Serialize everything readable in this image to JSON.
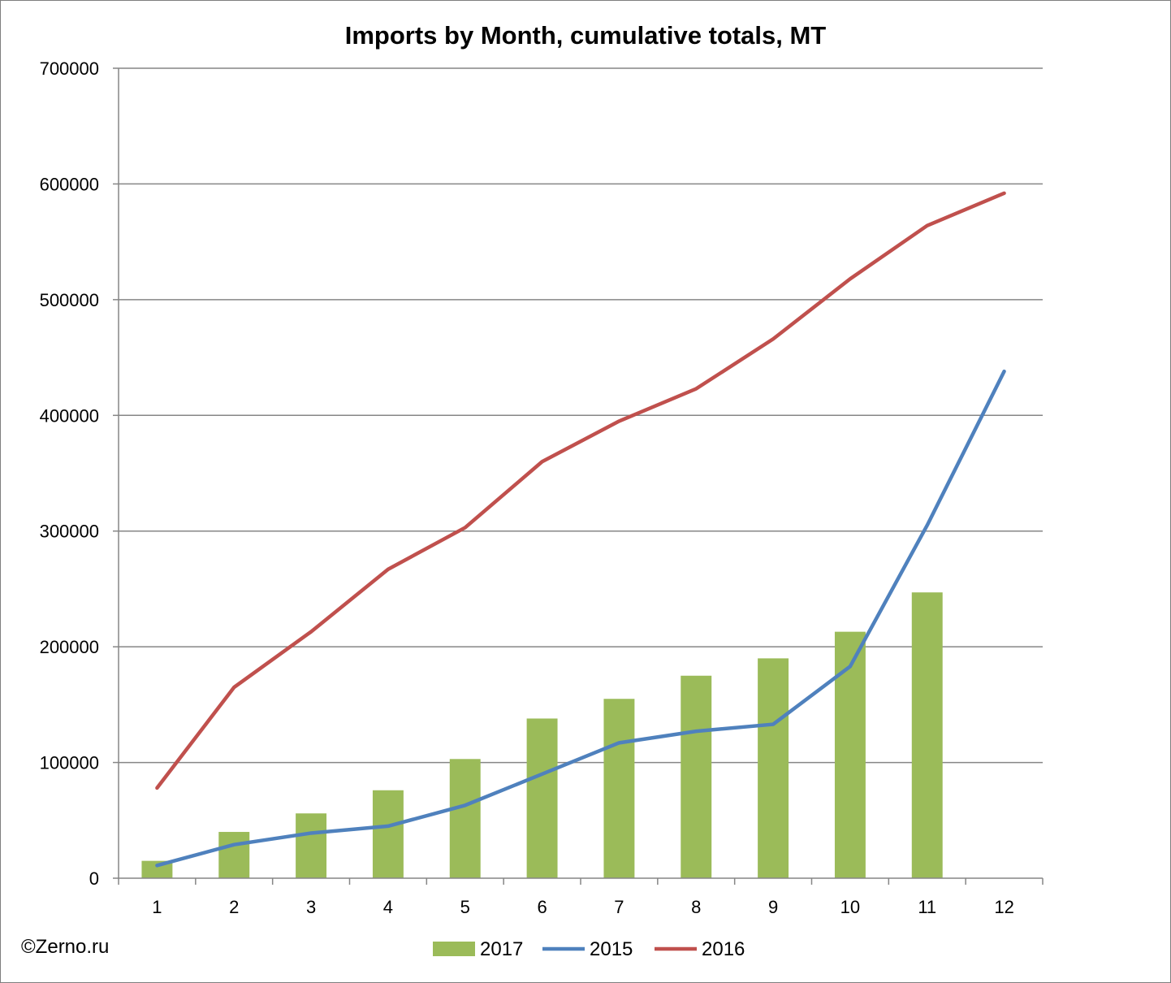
{
  "page": {
    "copyright": "©Zerno.ru"
  },
  "chart_data": {
    "type": "bar+line",
    "title": "Imports by Month, cumulative totals, MT",
    "xlabel": "",
    "ylabel": "",
    "categories": [
      "1",
      "2",
      "3",
      "4",
      "5",
      "6",
      "7",
      "8",
      "9",
      "10",
      "11",
      "12"
    ],
    "ylim": [
      0,
      700000
    ],
    "yticks": [
      0,
      100000,
      200000,
      300000,
      400000,
      500000,
      600000,
      700000
    ],
    "ytick_labels": [
      "0",
      "100000",
      "200000",
      "300000",
      "400000",
      "500000",
      "600000",
      "700000"
    ],
    "grid": true,
    "legend_position": "bottom",
    "series": [
      {
        "name": "2017",
        "type": "bar",
        "color": "#9bbb59",
        "values": [
          15000,
          40000,
          56000,
          76000,
          103000,
          138000,
          155000,
          175000,
          190000,
          213000,
          247000,
          null
        ]
      },
      {
        "name": "2015",
        "type": "line",
        "color": "#4f81bd",
        "values": [
          11000,
          29000,
          39000,
          45000,
          63000,
          90000,
          117000,
          127000,
          133000,
          183000,
          305000,
          438000
        ]
      },
      {
        "name": "2016",
        "type": "line",
        "color": "#c0504d",
        "values": [
          78000,
          165000,
          213000,
          267000,
          303000,
          360000,
          395000,
          423000,
          466000,
          518000,
          564000,
          592000
        ]
      }
    ]
  }
}
